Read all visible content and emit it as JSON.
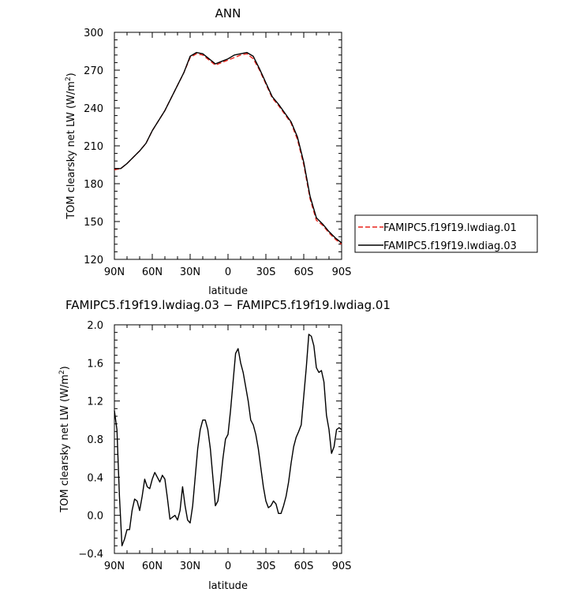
{
  "chart_data": [
    {
      "type": "line",
      "title": "ANN",
      "xlabel": "latitude",
      "ylabel_main": "TOM clearsky net LW (W/m",
      "ylabel_sup": "2",
      "ylabel_close": ")",
      "xlim": [
        -90,
        90
      ],
      "ylim": [
        120,
        300
      ],
      "xticks": [
        {
          "value": -90,
          "label": "90N"
        },
        {
          "value": -60,
          "label": "60N"
        },
        {
          "value": -30,
          "label": "30N"
        },
        {
          "value": 0,
          "label": "0"
        },
        {
          "value": 30,
          "label": "30S"
        },
        {
          "value": 60,
          "label": "60S"
        },
        {
          "value": 90,
          "label": "90S"
        }
      ],
      "yticks": [
        {
          "value": 120,
          "label": "120"
        },
        {
          "value": 150,
          "label": "150"
        },
        {
          "value": 180,
          "label": "180"
        },
        {
          "value": 210,
          "label": "210"
        },
        {
          "value": 240,
          "label": "240"
        },
        {
          "value": 270,
          "label": "270"
        },
        {
          "value": 300,
          "label": "300"
        }
      ],
      "legend_placement": "right",
      "series": [
        {
          "name": "FAMIPC5.f19f19.lwdiag.01",
          "color": "#e8221a",
          "dash": "dashed",
          "x": [
            -90,
            -85,
            -80,
            -75,
            -70,
            -65,
            -60,
            -55,
            -50,
            -45,
            -40,
            -35,
            -30,
            -25,
            -20,
            -15,
            -10,
            -5,
            0,
            5,
            10,
            15,
            20,
            25,
            30,
            35,
            40,
            45,
            50,
            55,
            60,
            65,
            70,
            75,
            80,
            85,
            90
          ],
          "y": [
            191,
            192,
            196,
            201,
            206,
            212,
            222,
            230,
            238,
            248,
            258,
            268,
            280,
            283,
            282,
            278,
            274,
            276,
            278,
            280,
            282,
            283,
            279,
            270,
            259,
            248,
            242,
            235,
            228,
            215,
            195,
            168,
            151,
            147,
            141,
            136,
            132
          ]
        },
        {
          "name": "FAMIPC5.f19f19.lwdiag.03",
          "color": "#000000",
          "dash": "solid",
          "x": [
            -90,
            -85,
            -80,
            -75,
            -70,
            -65,
            -60,
            -55,
            -50,
            -45,
            -40,
            -35,
            -30,
            -25,
            -20,
            -15,
            -10,
            -5,
            0,
            5,
            10,
            15,
            20,
            25,
            30,
            35,
            40,
            45,
            50,
            55,
            60,
            65,
            70,
            75,
            80,
            85,
            90
          ],
          "y": [
            192,
            192,
            196,
            201,
            206,
            212,
            222,
            230,
            238,
            248,
            258,
            268,
            281,
            284,
            283,
            279,
            275,
            277,
            279,
            282,
            283,
            284,
            281,
            271,
            260,
            249,
            243,
            236,
            229,
            217,
            197,
            170,
            153,
            148,
            142,
            137,
            133
          ]
        }
      ]
    },
    {
      "type": "line",
      "title": "FAMIPC5.f19f19.lwdiag.03 − FAMIPC5.f19f19.lwdiag.01",
      "xlabel": "latitude",
      "ylabel_main": "TOM clearsky net LW (W/m",
      "ylabel_sup": "2",
      "ylabel_close": ")",
      "xlim": [
        -90,
        90
      ],
      "ylim": [
        -0.4,
        2.0
      ],
      "xticks": [
        {
          "value": -90,
          "label": "90N"
        },
        {
          "value": -60,
          "label": "60N"
        },
        {
          "value": -30,
          "label": "30N"
        },
        {
          "value": 0,
          "label": "0"
        },
        {
          "value": 30,
          "label": "30S"
        },
        {
          "value": 60,
          "label": "60S"
        },
        {
          "value": 90,
          "label": "90S"
        }
      ],
      "yticks": [
        {
          "value": -0.4,
          "label": "−0.4"
        },
        {
          "value": 0.0,
          "label": "0.0"
        },
        {
          "value": 0.4,
          "label": "0.4"
        },
        {
          "value": 0.8,
          "label": "0.8"
        },
        {
          "value": 1.2,
          "label": "1.2"
        },
        {
          "value": 1.6,
          "label": "1.6"
        },
        {
          "value": 2.0,
          "label": "2.0"
        }
      ],
      "series": [
        {
          "color": "#000000",
          "dash": "solid",
          "x": [
            -90,
            -88,
            -86,
            -84,
            -82,
            -80,
            -78,
            -76,
            -74,
            -72,
            -70,
            -68,
            -66,
            -64,
            -62,
            -60,
            -58,
            -56,
            -54,
            -52,
            -50,
            -48,
            -46,
            -44,
            -42,
            -40,
            -38,
            -36,
            -34,
            -32,
            -30,
            -28,
            -26,
            -24,
            -22,
            -20,
            -18,
            -16,
            -14,
            -12,
            -10,
            -8,
            -6,
            -4,
            -2,
            0,
            2,
            4,
            6,
            8,
            10,
            12,
            14,
            16,
            18,
            20,
            22,
            24,
            26,
            28,
            30,
            32,
            34,
            36,
            38,
            40,
            42,
            44,
            46,
            48,
            50,
            52,
            54,
            56,
            58,
            60,
            62,
            64,
            66,
            68,
            70,
            72,
            74,
            76,
            78,
            80,
            82,
            84,
            86,
            88,
            90
          ],
          "y": [
            1.1,
            0.9,
            0.2,
            -0.32,
            -0.25,
            -0.15,
            -0.15,
            0.05,
            0.17,
            0.15,
            0.05,
            0.2,
            0.38,
            0.3,
            0.28,
            0.38,
            0.45,
            0.4,
            0.35,
            0.42,
            0.38,
            0.18,
            -0.04,
            -0.02,
            0.0,
            -0.05,
            0.05,
            0.3,
            0.1,
            -0.05,
            -0.08,
            0.1,
            0.4,
            0.7,
            0.9,
            1.0,
            1.0,
            0.9,
            0.7,
            0.4,
            0.1,
            0.15,
            0.35,
            0.6,
            0.8,
            0.85,
            1.1,
            1.4,
            1.7,
            1.75,
            1.6,
            1.5,
            1.35,
            1.2,
            1.0,
            0.95,
            0.85,
            0.7,
            0.5,
            0.3,
            0.15,
            0.08,
            0.1,
            0.15,
            0.12,
            0.02,
            0.02,
            0.1,
            0.2,
            0.35,
            0.55,
            0.72,
            0.82,
            0.88,
            0.95,
            1.25,
            1.55,
            1.9,
            1.88,
            1.78,
            1.55,
            1.5,
            1.52,
            1.4,
            1.05,
            0.9,
            0.65,
            0.72,
            0.9,
            0.92,
            0.9
          ]
        }
      ]
    }
  ]
}
